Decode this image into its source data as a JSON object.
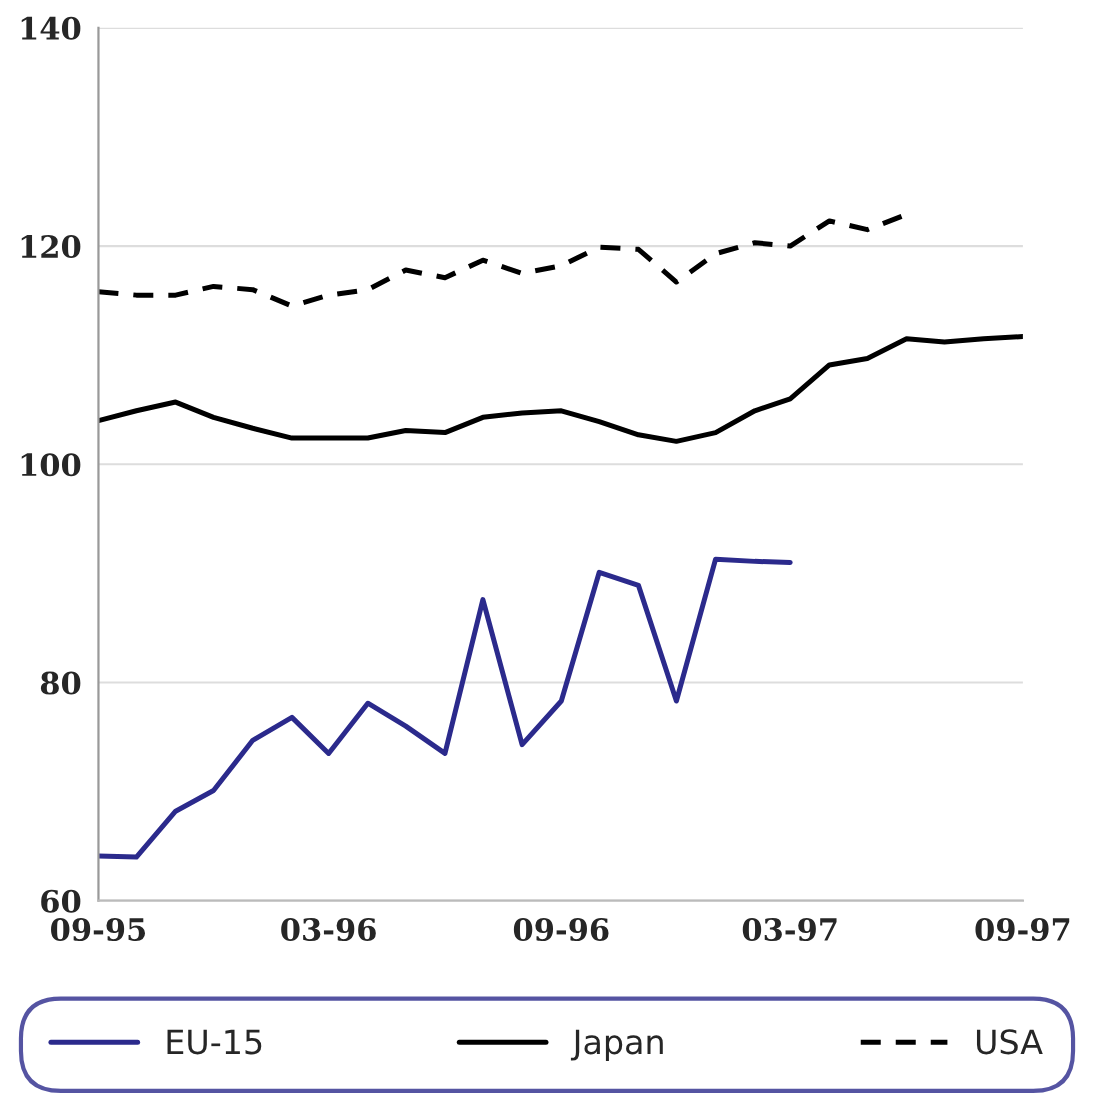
{
  "chart_data": {
    "type": "line",
    "x": [
      "1995-09",
      "1995-10",
      "1995-11",
      "1995-12",
      "1996-01",
      "1996-02",
      "1996-03",
      "1996-04",
      "1996-05",
      "1996-06",
      "1996-07",
      "1996-08",
      "1996-09",
      "1996-10",
      "1996-11",
      "1996-12",
      "1997-01",
      "1997-02",
      "1997-03",
      "1997-04",
      "1997-05",
      "1997-06",
      "1997-07",
      "1997-08",
      "1997-09"
    ],
    "series": [
      {
        "name": "EU-15",
        "color": "#2b2a8c",
        "line_style": "solid",
        "values": [
          64.1,
          64.0,
          68.2,
          70.1,
          74.7,
          76.8,
          73.5,
          78.1,
          76.0,
          73.5,
          87.6,
          74.3,
          78.3,
          90.1,
          88.9,
          78.3,
          91.3,
          91.1,
          91.0,
          null,
          null,
          null,
          null,
          null,
          null
        ]
      },
      {
        "name": "Japan",
        "color": "#000000",
        "line_style": "solid",
        "values": [
          104.0,
          104.9,
          105.7,
          104.3,
          103.3,
          102.4,
          102.4,
          102.4,
          103.1,
          102.9,
          104.3,
          104.7,
          104.9,
          103.9,
          102.7,
          102.1,
          102.9,
          104.9,
          106.0,
          109.1,
          109.7,
          111.5,
          111.2,
          111.5,
          111.7
        ]
      },
      {
        "name": "USA",
        "color": "#000000",
        "line_style": "dashed",
        "values": [
          115.8,
          115.5,
          115.5,
          116.3,
          116.0,
          114.5,
          115.5,
          116.0,
          117.8,
          117.1,
          118.7,
          117.5,
          118.2,
          119.9,
          119.7,
          116.7,
          119.3,
          120.3,
          120.0,
          122.3,
          121.5,
          122.9,
          null,
          null,
          null
        ]
      }
    ],
    "xlim": [
      "1995-09",
      "1997-09"
    ],
    "xticks": [
      {
        "value": "1995-09",
        "label": "09-95"
      },
      {
        "value": "1996-03",
        "label": "03-96"
      },
      {
        "value": "1996-09",
        "label": "09-96"
      },
      {
        "value": "1997-03",
        "label": "03-97"
      },
      {
        "value": "1997-09",
        "label": "09-97"
      }
    ],
    "ylim": [
      60,
      140
    ],
    "yticks": [
      60,
      80,
      100,
      120,
      140
    ],
    "grid": "y",
    "legend": "bottom",
    "marker": "none"
  }
}
